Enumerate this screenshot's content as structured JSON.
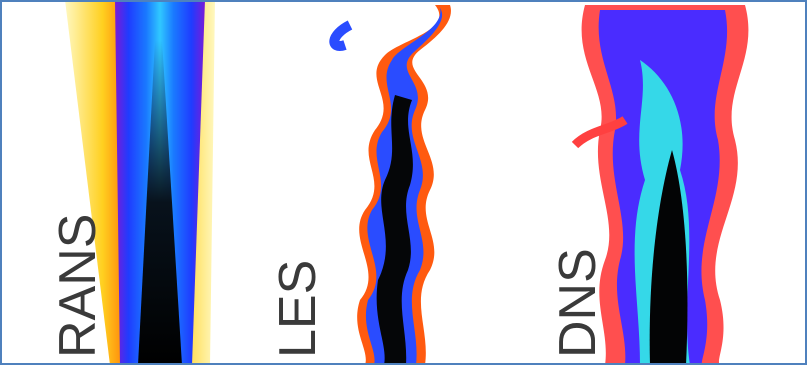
{
  "panels": [
    {
      "label": "RANS"
    },
    {
      "label": "LES"
    },
    {
      "label": "DNS"
    }
  ]
}
